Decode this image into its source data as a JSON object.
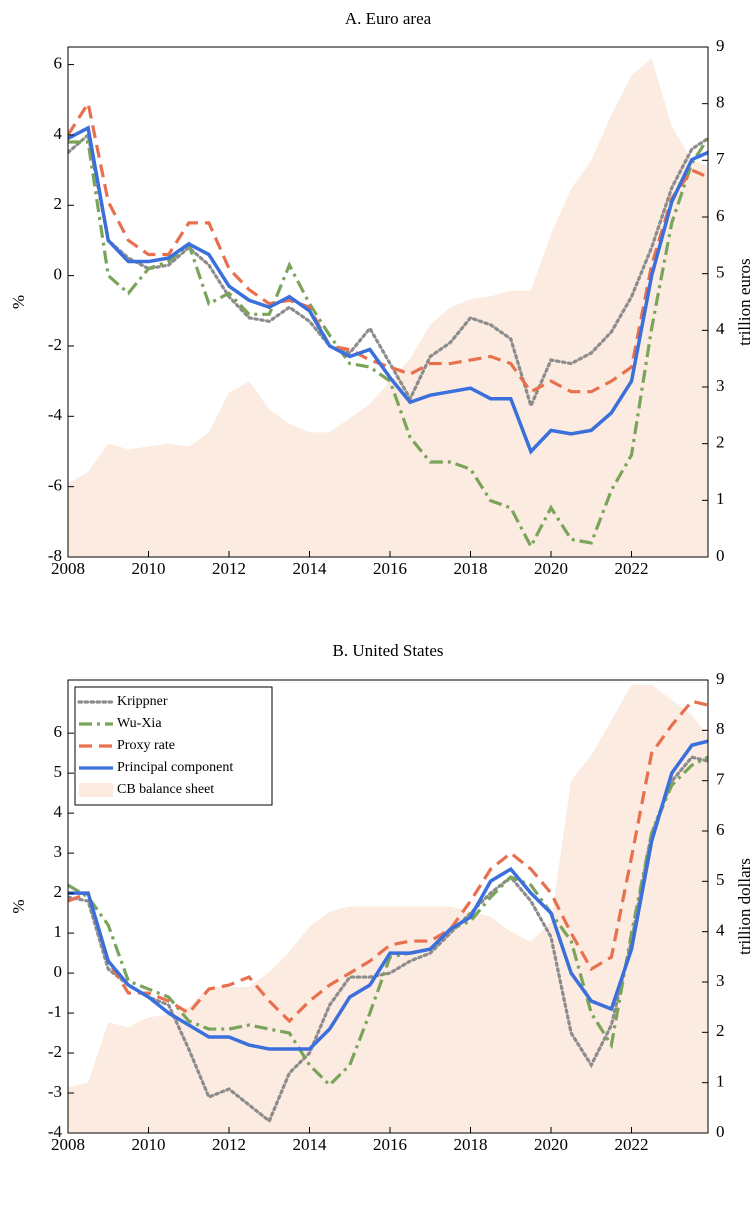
{
  "chart_data": [
    {
      "type": "line",
      "title": "A. Euro area",
      "ylabel": "%",
      "y2label": "trillion euros",
      "xlim": [
        2008,
        2023.9
      ],
      "xticks": [
        2008,
        2010,
        2012,
        2014,
        2016,
        2018,
        2020,
        2022
      ],
      "ylim": [
        -8,
        6.5
      ],
      "yticks": [
        -8,
        -6,
        -4,
        -2,
        0,
        2,
        4,
        6
      ],
      "y2lim": [
        0,
        9
      ],
      "y2ticks": [
        0,
        1,
        2,
        3,
        4,
        5,
        6,
        7,
        8,
        9
      ],
      "x": [
        2008,
        2008.5,
        2009,
        2009.5,
        2010,
        2010.5,
        2011,
        2011.5,
        2012,
        2012.5,
        2013,
        2013.5,
        2014,
        2014.5,
        2015,
        2015.5,
        2016,
        2016.5,
        2017,
        2017.5,
        2018,
        2018.5,
        2019,
        2019.5,
        2020,
        2020.5,
        2021,
        2021.5,
        2022,
        2022.5,
        2023,
        2023.5,
        2023.9
      ],
      "series": [
        {
          "type": "area",
          "axis": "y2",
          "color": "#fbebe0",
          "values": [
            1.3,
            1.5,
            2.0,
            1.9,
            1.95,
            2.0,
            1.95,
            2.2,
            2.9,
            3.1,
            2.6,
            2.35,
            2.2,
            2.2,
            2.45,
            2.7,
            3.1,
            3.5,
            4.1,
            4.4,
            4.55,
            4.6,
            4.7,
            4.7,
            5.7,
            6.5,
            7.0,
            7.8,
            8.5,
            8.8,
            7.6,
            7.0,
            6.9
          ]
        },
        {
          "linestyle": "dotted",
          "color": "#8c8c8c",
          "values": [
            3.5,
            4.0,
            1.0,
            0.5,
            0.2,
            0.3,
            0.8,
            0.3,
            -0.6,
            -1.2,
            -1.3,
            -0.9,
            -1.3,
            -2.0,
            -2.2,
            -1.5,
            -2.5,
            -3.5,
            -2.3,
            -1.9,
            -1.2,
            -1.4,
            -1.8,
            -3.7,
            -2.4,
            -2.5,
            -2.2,
            -1.6,
            -0.6,
            0.8,
            2.5,
            3.6,
            3.9
          ]
        },
        {
          "linestyle": "dashdot",
          "color": "#7aa45a",
          "values": [
            3.8,
            3.8,
            0.0,
            -0.5,
            0.2,
            0.4,
            0.9,
            -0.8,
            -0.5,
            -1.1,
            -1.1,
            0.3,
            -0.8,
            -1.7,
            -2.5,
            -2.6,
            -3.0,
            -4.6,
            -5.3,
            -5.3,
            -5.5,
            -6.4,
            -6.6,
            -7.7,
            -6.6,
            -7.5,
            -7.6,
            -6.1,
            -5.1,
            -1.5,
            1.5,
            3.2,
            3.9
          ]
        },
        {
          "linestyle": "dashed",
          "color": "#e8704f",
          "values": [
            4.0,
            4.9,
            2.1,
            1.0,
            0.6,
            0.6,
            1.5,
            1.5,
            0.2,
            -0.4,
            -0.8,
            -0.7,
            -0.9,
            -2.0,
            -2.1,
            -2.4,
            -2.6,
            -2.8,
            -2.5,
            -2.5,
            -2.4,
            -2.3,
            -2.5,
            -3.3,
            -3.0,
            -3.3,
            -3.3,
            -3.0,
            -2.6,
            0.3,
            2.2,
            3.0,
            2.8
          ]
        },
        {
          "linestyle": "solid",
          "color": "#3a6fdc",
          "values": [
            3.9,
            4.2,
            1.0,
            0.4,
            0.4,
            0.5,
            0.9,
            0.6,
            -0.3,
            -0.7,
            -0.9,
            -0.6,
            -1.0,
            -2.0,
            -2.3,
            -2.1,
            -2.9,
            -3.6,
            -3.4,
            -3.3,
            -3.2,
            -3.5,
            -3.5,
            -5.0,
            -4.4,
            -4.5,
            -4.4,
            -3.9,
            -3.0,
            0.0,
            2.1,
            3.3,
            3.5
          ]
        }
      ]
    },
    {
      "type": "line",
      "title": "B. United States",
      "ylabel": "%",
      "y2label": "trillion dollars",
      "legend": "upper left",
      "xlim": [
        2008,
        2023.9
      ],
      "xticks": [
        2008,
        2010,
        2012,
        2014,
        2016,
        2018,
        2020,
        2022
      ],
      "ylim": [
        -4,
        7.33
      ],
      "yticks": [
        -4,
        -3,
        -2,
        -1,
        0,
        1,
        2,
        3,
        4,
        5,
        6
      ],
      "y2lim": [
        0,
        9
      ],
      "y2ticks": [
        0,
        1,
        2,
        3,
        4,
        5,
        6,
        7,
        8,
        9
      ],
      "x": [
        2008,
        2008.5,
        2009,
        2009.5,
        2010,
        2010.5,
        2011,
        2011.5,
        2012,
        2012.5,
        2013,
        2013.5,
        2014,
        2014.5,
        2015,
        2015.5,
        2016,
        2016.5,
        2017,
        2017.5,
        2018,
        2018.5,
        2019,
        2019.5,
        2020,
        2020.5,
        2021,
        2021.5,
        2022,
        2022.5,
        2023,
        2023.5,
        2023.9
      ],
      "series": [
        {
          "name": "Krippner",
          "linestyle": "dotted",
          "color": "#8c8c8c",
          "values": [
            1.9,
            1.8,
            0.1,
            -0.3,
            -0.6,
            -0.8,
            -1.9,
            -3.1,
            -2.9,
            -3.3,
            -3.7,
            -2.5,
            -2.0,
            -0.8,
            -0.1,
            -0.1,
            0.0,
            0.3,
            0.5,
            1.0,
            1.5,
            2.0,
            2.4,
            1.8,
            0.9,
            -1.5,
            -2.3,
            -1.3,
            0.8,
            3.5,
            4.8,
            5.4,
            5.3
          ]
        },
        {
          "name": "Wu-Xia",
          "linestyle": "dashdot",
          "color": "#7aa45a",
          "values": [
            2.2,
            1.9,
            1.2,
            -0.2,
            -0.4,
            -0.6,
            -1.2,
            -1.4,
            -1.4,
            -1.3,
            -1.4,
            -1.5,
            -2.3,
            -2.8,
            -2.3,
            -1.0,
            0.4,
            0.5,
            0.6,
            1.1,
            1.3,
            1.9,
            2.4,
            2.2,
            1.5,
            0.8,
            -1.0,
            -1.8,
            1.0,
            3.5,
            4.7,
            5.2,
            5.4
          ]
        },
        {
          "name": "Proxy rate",
          "linestyle": "dashed",
          "color": "#e8704f",
          "values": [
            1.8,
            2.0,
            0.3,
            -0.5,
            -0.5,
            -0.7,
            -1.0,
            -0.4,
            -0.3,
            -0.1,
            -0.7,
            -1.2,
            -0.7,
            -0.3,
            0.0,
            0.3,
            0.7,
            0.8,
            0.8,
            1.1,
            1.8,
            2.6,
            3.0,
            2.6,
            2.0,
            1.0,
            0.1,
            0.4,
            2.9,
            5.5,
            6.2,
            6.8,
            6.7
          ]
        },
        {
          "name": "Principal component",
          "linestyle": "solid",
          "color": "#3a6fdc",
          "values": [
            2.0,
            2.0,
            0.3,
            -0.3,
            -0.6,
            -1.0,
            -1.3,
            -1.6,
            -1.6,
            -1.8,
            -1.9,
            -1.9,
            -1.9,
            -1.4,
            -0.6,
            -0.3,
            0.5,
            0.5,
            0.6,
            1.1,
            1.4,
            2.3,
            2.6,
            2.0,
            1.5,
            0.0,
            -0.7,
            -0.9,
            0.6,
            3.3,
            5.0,
            5.7,
            5.8
          ]
        },
        {
          "name": "CB balance sheet",
          "type": "area",
          "axis": "y2",
          "color": "#fbebe0",
          "values": [
            0.9,
            1.0,
            2.2,
            2.1,
            2.3,
            2.35,
            2.5,
            2.9,
            2.9,
            2.9,
            3.2,
            3.6,
            4.1,
            4.4,
            4.5,
            4.5,
            4.5,
            4.5,
            4.5,
            4.5,
            4.4,
            4.3,
            4.0,
            3.8,
            4.2,
            7.0,
            7.5,
            8.2,
            8.9,
            8.9,
            8.6,
            8.3,
            7.9
          ]
        }
      ]
    }
  ]
}
